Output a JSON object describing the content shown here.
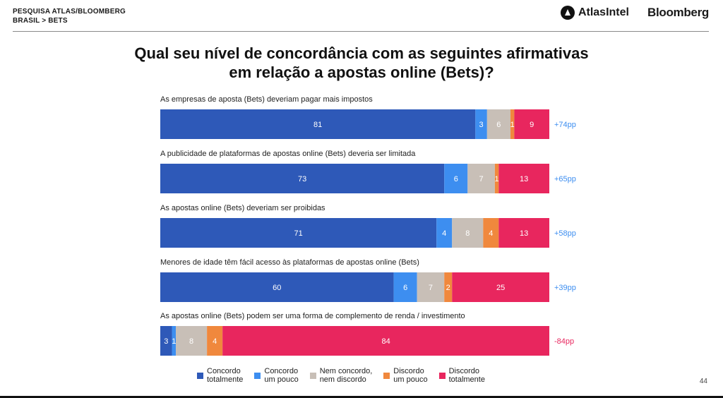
{
  "header": {
    "survey": "PESQUISA ATLAS/BLOOMBERG",
    "breadcrumb": "BRASIL > BETS",
    "logo_atlas": "AtlasIntel",
    "logo_bloomberg": "Bloomberg"
  },
  "title_line1": "Qual seu nível de concordância com as seguintes afirmativas",
  "title_line2": "em relação a apostas online (Bets)?",
  "page_number": "44",
  "chart_data": {
    "type": "bar",
    "orientation": "horizontal",
    "stacked": true,
    "title": "Qual seu nível de concordância com as seguintes afirmativas em relação a apostas online (Bets)?",
    "categories": [
      "As empresas de aposta (Bets) deveriam pagar mais impostos",
      "A publicidade de plataformas de apostas online (Bets) deveria ser limitada",
      "As apostas online (Bets) deveriam ser proibidas",
      "Menores de idade têm fácil acesso às plataformas de apostas online (Bets)",
      "As apostas online (Bets) podem ser uma forma de complemento de renda / investimento"
    ],
    "series": [
      {
        "name": "Concordo totalmente",
        "legend_lines": [
          "Concordo",
          "totalmente"
        ],
        "color": "#2e59b8",
        "values": [
          81,
          73,
          71,
          60,
          3
        ]
      },
      {
        "name": "Concordo um pouco",
        "legend_lines": [
          "Concordo",
          "um pouco"
        ],
        "color": "#3d8ef0",
        "values": [
          3,
          6,
          4,
          6,
          1
        ]
      },
      {
        "name": "Nem concordo, nem discordo",
        "legend_lines": [
          "Nem concordo,",
          "nem discordo"
        ],
        "color": "#c8bfb7",
        "values": [
          6,
          7,
          8,
          7,
          8
        ]
      },
      {
        "name": "Discordo um pouco",
        "legend_lines": [
          "Discordo",
          "um pouco"
        ],
        "color": "#f0883d",
        "values": [
          1,
          1,
          4,
          2,
          4
        ]
      },
      {
        "name": "Discordo totalmente",
        "legend_lines": [
          "Discordo",
          "totalmente"
        ],
        "color": "#e8265e",
        "values": [
          9,
          13,
          13,
          25,
          84
        ]
      }
    ],
    "net_labels": [
      "+74pp",
      "+65pp",
      "+58pp",
      "+39pp",
      "-84pp"
    ],
    "net_colors": {
      "positive": "#3d8ef0",
      "negative": "#e8265e"
    },
    "xlim": [
      0,
      100
    ],
    "value_label_color": "#ffffff",
    "legend_position": "bottom"
  }
}
